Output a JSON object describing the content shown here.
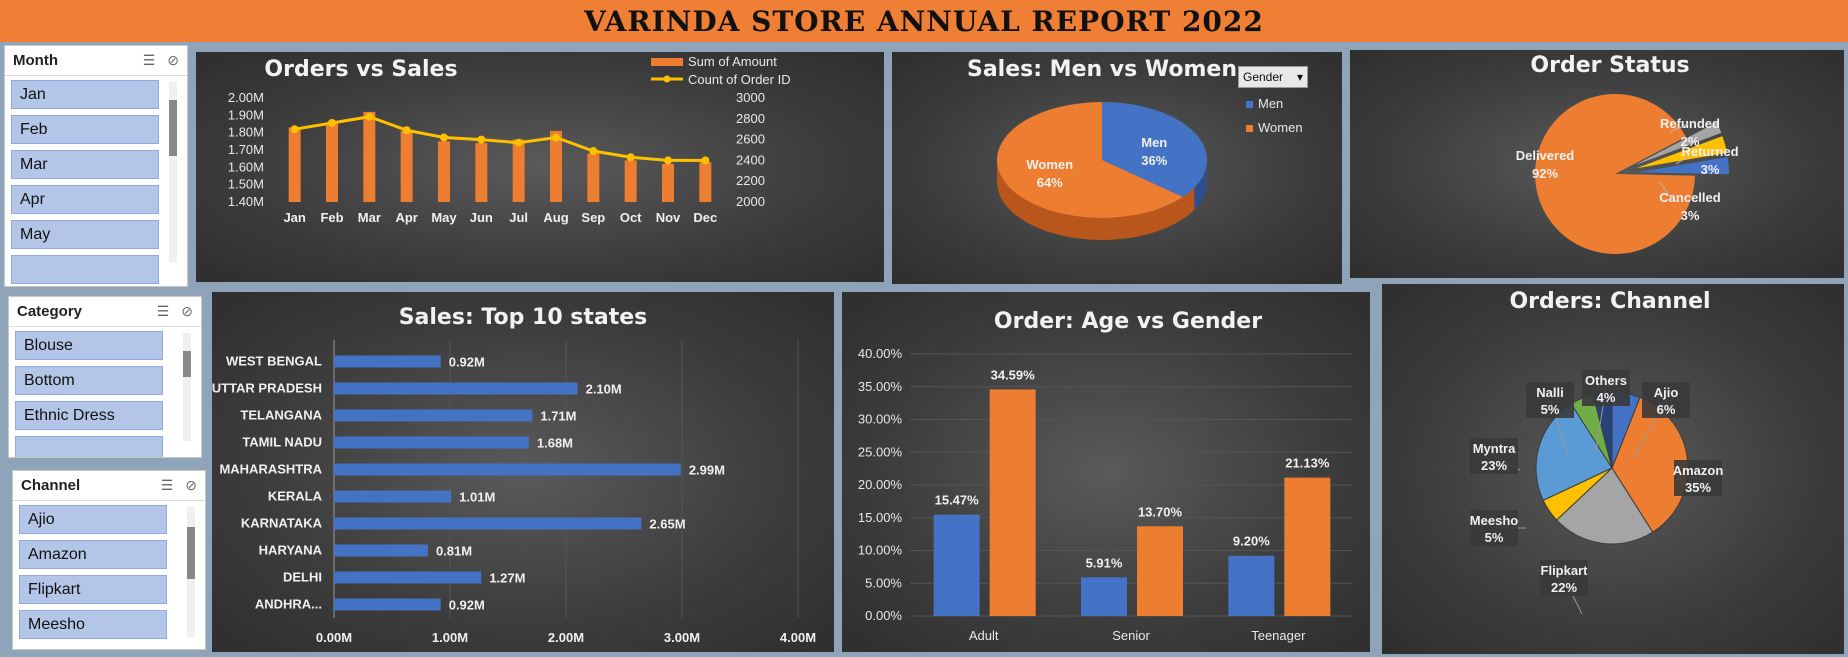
{
  "report_title": "VARINDA STORE ANNUAL REPORT 2022",
  "slicers": {
    "month": {
      "title": "Month",
      "items": [
        "Jan",
        "Feb",
        "Mar",
        "Apr",
        "May"
      ]
    },
    "category": {
      "title": "Category",
      "items": [
        "Blouse",
        "Bottom",
        "Ethnic Dress"
      ]
    },
    "channel": {
      "title": "Channel",
      "items": [
        "Ajio",
        "Amazon",
        "Flipkart",
        "Meesho"
      ]
    }
  },
  "gender_filter": {
    "label": "Gender"
  },
  "colors": {
    "orange": "#ed7d31",
    "blue": "#4472c4",
    "yellow": "#ffc000",
    "gray": "#a5a5a5",
    "green": "#70ad47",
    "lightblue": "#5b9bd5",
    "navy": "#264478"
  },
  "chart_data": [
    {
      "id": "orders_vs_sales",
      "type": "bar",
      "title": "Orders vs Sales",
      "categories": [
        "Jan",
        "Feb",
        "Mar",
        "Apr",
        "May",
        "Jun",
        "Jul",
        "Aug",
        "Sep",
        "Oct",
        "Nov",
        "Dec"
      ],
      "series": [
        {
          "name": "Sum of Amount",
          "values": [
            1.83,
            1.86,
            1.92,
            1.81,
            1.75,
            1.74,
            1.76,
            1.81,
            1.68,
            1.64,
            1.62,
            1.63
          ]
        },
        {
          "name": "Count of Order ID",
          "values": [
            2700,
            2760,
            2820,
            2690,
            2620,
            2600,
            2570,
            2620,
            2490,
            2430,
            2400,
            2400
          ]
        }
      ],
      "ylim": [
        1.4,
        2.0
      ],
      "y_ticks": [
        "2.00M",
        "1.90M",
        "1.80M",
        "1.70M",
        "1.60M",
        "1.50M",
        "1.40M"
      ],
      "y2lim": [
        2000,
        3000
      ],
      "y2_ticks": [
        "3000",
        "2800",
        "2600",
        "2400",
        "2200",
        "2000"
      ],
      "legend": "top-right"
    },
    {
      "id": "men_vs_women",
      "type": "pie",
      "title": "Sales: Men vs Women",
      "categories": [
        "Men",
        "Women"
      ],
      "values": [
        36,
        64
      ],
      "labels": [
        "36%",
        "64%"
      ],
      "legend": "right"
    },
    {
      "id": "order_status",
      "type": "pie",
      "title": "Order Status",
      "categories": [
        "Delivered",
        "Refunded",
        "Returned",
        "Cancelled"
      ],
      "values": [
        92,
        2,
        3,
        3
      ],
      "labels": [
        "92%",
        "2%",
        "3%",
        "3%"
      ]
    },
    {
      "id": "top_states",
      "type": "bar",
      "orientation": "horizontal",
      "title": "Sales: Top 10 states",
      "categories": [
        "WEST BENGAL",
        "UTTAR PRADESH",
        "TELANGANA",
        "TAMIL NADU",
        "MAHARASHTRA",
        "KERALA",
        "KARNATAKA",
        "HARYANA",
        "DELHI",
        "ANDHRA..."
      ],
      "values": [
        0.92,
        2.1,
        1.71,
        1.68,
        2.99,
        1.01,
        2.65,
        0.81,
        1.27,
        0.92
      ],
      "labels": [
        "0.92M",
        "2.10M",
        "1.71M",
        "1.68M",
        "2.99M",
        "1.01M",
        "2.65M",
        "0.81M",
        "1.27M",
        "0.92M"
      ],
      "xlim": [
        0,
        4
      ],
      "x_ticks": [
        "0.00M",
        "1.00M",
        "2.00M",
        "3.00M",
        "4.00M"
      ]
    },
    {
      "id": "age_vs_gender",
      "type": "bar",
      "title": "Order: Age vs Gender",
      "categories": [
        "Adult",
        "Senior",
        "Teenager"
      ],
      "series": [
        {
          "values": [
            15.47,
            5.91,
            9.2
          ],
          "labels": [
            "15.47%",
            "5.91%",
            "9.20%"
          ]
        },
        {
          "values": [
            34.59,
            13.7,
            21.13
          ],
          "labels": [
            "34.59%",
            "13.70%",
            "21.13%"
          ]
        }
      ],
      "ylim": [
        0,
        40
      ],
      "y_ticks": [
        "40.00%",
        "35.00%",
        "30.00%",
        "25.00%",
        "20.00%",
        "15.00%",
        "10.00%",
        "5.00%",
        "0.00%"
      ]
    },
    {
      "id": "orders_channel",
      "type": "pie",
      "title": "Orders: Channel",
      "categories": [
        "Amazon",
        "Flipkart",
        "Meesho",
        "Myntra",
        "Nalli",
        "Others",
        "Ajio"
      ],
      "values": [
        35,
        22,
        5,
        23,
        5,
        4,
        6
      ],
      "labels": [
        "35%",
        "22%",
        "5%",
        "23%",
        "5%",
        "4%",
        "6%"
      ]
    }
  ]
}
